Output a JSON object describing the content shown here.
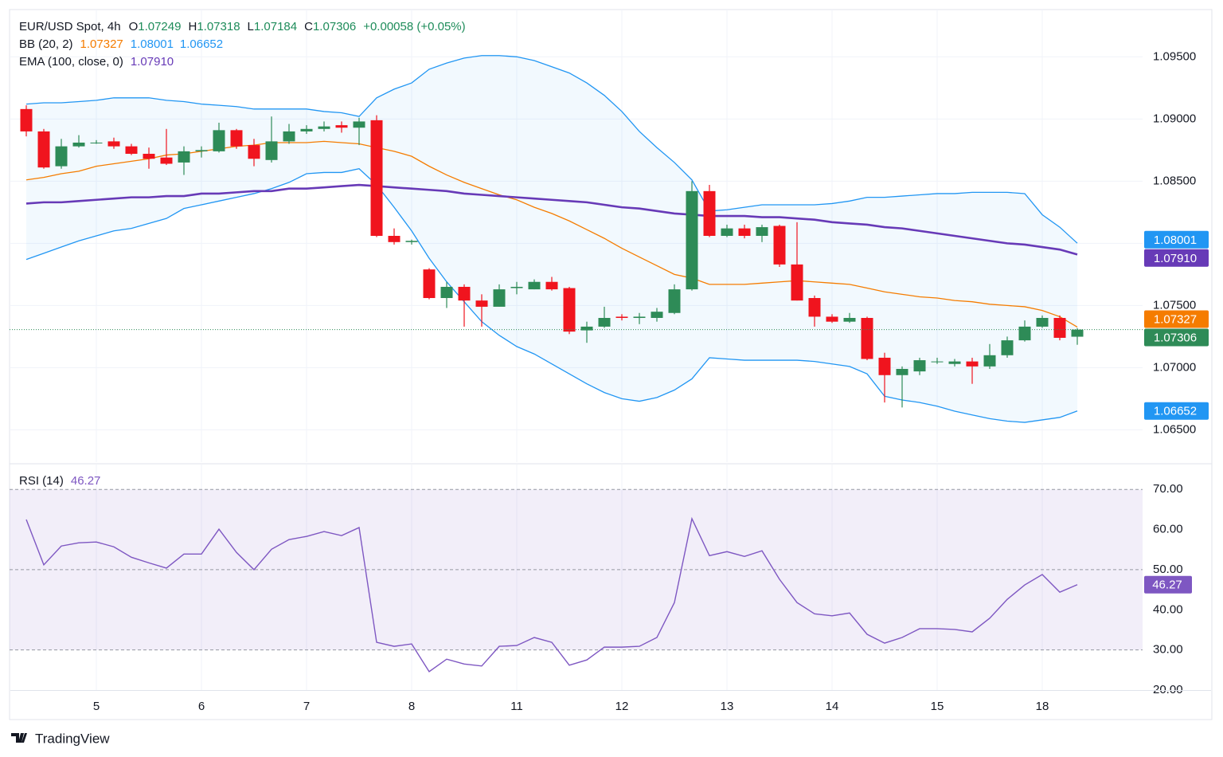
{
  "brand": "TradingView",
  "chart_data": {
    "type": "candlestick",
    "title": "EUR/USD Spot, 4h",
    "ohlc_labels": [
      "O",
      "H",
      "L",
      "C"
    ],
    "change": "+0.00058 (+0.05%)",
    "categories": [
      null,
      null,
      null,
      null,
      "5",
      null,
      null,
      null,
      null,
      null,
      "6",
      null,
      null,
      null,
      null,
      null,
      "7",
      null,
      null,
      null,
      null,
      null,
      "8",
      null,
      null,
      null,
      null,
      null,
      "11",
      null,
      null,
      null,
      null,
      null,
      "12",
      null,
      null,
      null,
      null,
      null,
      "13",
      null,
      null,
      null,
      null,
      null,
      "14",
      null,
      null,
      null,
      null,
      null,
      "15",
      null,
      null,
      null,
      null,
      null,
      "18",
      null,
      null
    ],
    "open": [
      1.0908,
      1.089,
      1.0862,
      1.0878,
      1.0881,
      1.0882,
      1.0878,
      1.0872,
      1.0869,
      1.0865,
      1.0874,
      1.0874,
      1.0891,
      1.0879,
      1.0867,
      1.0882,
      1.089,
      1.0892,
      1.0895,
      1.0893,
      1.0899,
      1.0806,
      1.0801,
      1.0779,
      1.0756,
      1.0765,
      1.0754,
      1.0749,
      1.0764,
      1.0763,
      1.0769,
      1.0764,
      1.073,
      1.0733,
      1.0741,
      1.074,
      1.074,
      1.0744,
      1.0763,
      1.0842,
      1.0806,
      1.0812,
      1.0806,
      1.0814,
      1.0783,
      1.0756,
      1.0741,
      1.0737,
      1.074,
      1.0708,
      1.0694,
      1.0697,
      1.0705,
      1.0703,
      1.0705,
      1.0701,
      1.071,
      1.0722,
      1.0733,
      1.074,
      1.07249
    ],
    "high": [
      1.0911,
      1.0892,
      1.0884,
      1.0887,
      1.0883,
      1.0885,
      1.088,
      1.0877,
      1.0892,
      1.0878,
      1.0878,
      1.0897,
      1.0892,
      1.0884,
      1.0902,
      1.0896,
      1.0895,
      1.0898,
      1.0898,
      1.0901,
      1.0903,
      1.0812,
      1.0803,
      1.078,
      1.0769,
      1.0767,
      1.0759,
      1.0767,
      1.0769,
      1.0771,
      1.0773,
      1.0765,
      1.0737,
      1.0749,
      1.0743,
      1.0744,
      1.0748,
      1.0767,
      1.085,
      1.0847,
      1.0815,
      1.0815,
      1.0815,
      1.0815,
      1.0817,
      1.0758,
      1.0743,
      1.0744,
      1.0741,
      1.0712,
      1.0701,
      1.0708,
      1.0708,
      1.0707,
      1.0708,
      1.0719,
      1.0725,
      1.0738,
      1.0742,
      1.0742,
      1.07318
    ],
    "low": [
      1.0886,
      1.086,
      1.086,
      1.0877,
      1.088,
      1.0876,
      1.0871,
      1.086,
      1.0863,
      1.0855,
      1.0869,
      1.0873,
      1.0876,
      1.0862,
      1.0865,
      1.088,
      1.0888,
      1.089,
      1.0889,
      1.0879,
      1.0805,
      1.0799,
      1.0799,
      1.0755,
      1.0748,
      1.0733,
      1.0733,
      1.0749,
      1.0759,
      1.0763,
      1.0762,
      1.0727,
      1.072,
      1.0732,
      1.0738,
      1.0735,
      1.0737,
      1.0743,
      1.0762,
      1.0805,
      1.0805,
      1.0804,
      1.0801,
      1.0781,
      1.0754,
      1.0733,
      1.0736,
      1.0736,
      1.0706,
      1.0672,
      1.0668,
      1.0694,
      1.0703,
      1.0701,
      1.0687,
      1.0699,
      1.0708,
      1.0721,
      1.0732,
      1.0722,
      1.07184
    ],
    "close": [
      1.089,
      1.0861,
      1.0878,
      1.0881,
      1.0881,
      1.0878,
      1.0872,
      1.0868,
      1.0864,
      1.0874,
      1.0875,
      1.0891,
      1.0878,
      1.0868,
      1.0882,
      1.089,
      1.0892,
      1.0894,
      1.0893,
      1.0898,
      1.0806,
      1.0801,
      1.0802,
      1.0756,
      1.0765,
      1.0754,
      1.0749,
      1.0763,
      1.0765,
      1.0769,
      1.0763,
      1.0729,
      1.0733,
      1.074,
      1.074,
      1.0741,
      1.0745,
      1.0763,
      1.0842,
      1.0806,
      1.0812,
      1.0806,
      1.0813,
      1.0783,
      1.0754,
      1.0741,
      1.0737,
      1.074,
      1.0707,
      1.0694,
      1.0699,
      1.0706,
      1.0705,
      1.0705,
      1.0701,
      1.071,
      1.0722,
      1.0733,
      1.074,
      1.0724,
      1.07306
    ],
    "up_color": "#2e8b57",
    "down_color": "#f0141e",
    "ylim": [
      1.0624,
      1.0988
    ],
    "yticks": [
      {
        "value": 1.065,
        "label": "1.06500"
      },
      {
        "value": 1.07,
        "label": "1.07000"
      },
      {
        "value": 1.075,
        "label": "1.07500"
      },
      {
        "value": 1.08,
        "label": "1.08000"
      },
      {
        "value": 1.085,
        "label": "1.08500"
      },
      {
        "value": 1.09,
        "label": "1.09000"
      },
      {
        "value": 1.095,
        "label": "1.09500"
      }
    ],
    "grid": true,
    "bb": {
      "name": "BB (20, 2)",
      "fill": "rgba(33,150,243,0.06)",
      "lines": [
        {
          "color": "#f57c00",
          "last_label": "1.07327",
          "values": [
            1.0851,
            1.0853,
            1.0856,
            1.0858,
            1.0862,
            1.0864,
            1.0866,
            1.0868,
            1.0871,
            1.0872,
            1.0874,
            1.0876,
            1.0878,
            1.0879,
            1.0881,
            1.0881,
            1.0881,
            1.0882,
            1.0881,
            1.088,
            1.0877,
            1.0874,
            1.087,
            1.0862,
            1.0855,
            1.0849,
            1.0844,
            1.0839,
            1.0835,
            1.0829,
            1.0824,
            1.0818,
            1.0811,
            1.0804,
            1.0796,
            1.0789,
            1.0782,
            1.0775,
            1.0772,
            1.0767,
            1.0767,
            1.0767,
            1.0768,
            1.0769,
            1.077,
            1.0769,
            1.0768,
            1.0767,
            1.0764,
            1.0761,
            1.0759,
            1.0757,
            1.0756,
            1.0754,
            1.0753,
            1.0751,
            1.075,
            1.0749,
            1.0746,
            1.0741,
            1.07327
          ]
        },
        {
          "color": "#2196f3",
          "last_label": "1.08001",
          "values": [
            1.0912,
            1.0913,
            1.0913,
            1.0914,
            1.0915,
            1.0917,
            1.0917,
            1.0917,
            1.0915,
            1.0914,
            1.0912,
            1.0911,
            1.091,
            1.0908,
            1.0908,
            1.0908,
            1.0908,
            1.0906,
            1.0905,
            1.0902,
            1.0917,
            1.0924,
            1.0929,
            1.094,
            1.0945,
            1.0949,
            1.0951,
            1.0951,
            1.095,
            1.0947,
            1.0942,
            1.0937,
            1.0929,
            1.0919,
            1.0906,
            1.089,
            1.0877,
            1.0865,
            1.0851,
            1.0826,
            1.0827,
            1.0829,
            1.0831,
            1.0831,
            1.0831,
            1.0831,
            1.0832,
            1.0834,
            1.0837,
            1.0837,
            1.0838,
            1.0839,
            1.084,
            1.084,
            1.0841,
            1.0841,
            1.0841,
            1.084,
            1.0823,
            1.0813,
            1.08001
          ]
        },
        {
          "color": "#2196f3",
          "last_label": "1.06652",
          "values": [
            1.0787,
            1.0792,
            1.0797,
            1.0802,
            1.0806,
            1.081,
            1.0812,
            1.0816,
            1.082,
            1.0828,
            1.0831,
            1.0834,
            1.0837,
            1.084,
            1.0844,
            1.0849,
            1.0856,
            1.0857,
            1.0857,
            1.086,
            1.0847,
            1.0829,
            1.081,
            1.0788,
            1.0769,
            1.0753,
            1.0737,
            1.0726,
            1.0717,
            1.0711,
            1.0703,
            1.0695,
            1.0687,
            1.068,
            1.0675,
            1.0673,
            1.0676,
            1.0682,
            1.0691,
            1.0708,
            1.0707,
            1.0706,
            1.0706,
            1.0706,
            1.0706,
            1.0705,
            1.0703,
            1.0701,
            1.0695,
            1.0677,
            1.0674,
            1.0672,
            1.0669,
            1.0665,
            1.0662,
            1.0659,
            1.0657,
            1.0656,
            1.0658,
            1.066,
            1.06652
          ]
        }
      ]
    },
    "ema": {
      "name": "EMA (100, close, 0)",
      "color": "#673ab7",
      "last_label": "1.07910",
      "values": [
        1.0832,
        1.0833,
        1.0833,
        1.0834,
        1.0835,
        1.0836,
        1.0837,
        1.0837,
        1.0838,
        1.0838,
        1.084,
        1.084,
        1.0841,
        1.0842,
        1.0842,
        1.0844,
        1.0844,
        1.0845,
        1.0846,
        1.0847,
        1.0846,
        1.0845,
        1.0844,
        1.0843,
        1.0842,
        1.084,
        1.0839,
        1.0838,
        1.0837,
        1.0836,
        1.0835,
        1.0834,
        1.0833,
        1.0831,
        1.0829,
        1.0828,
        1.0826,
        1.0824,
        1.0823,
        1.0822,
        1.0822,
        1.0822,
        1.0821,
        1.0821,
        1.082,
        1.0819,
        1.0817,
        1.0816,
        1.0815,
        1.0813,
        1.0812,
        1.081,
        1.0808,
        1.0806,
        1.0804,
        1.0802,
        1.08,
        1.0799,
        1.0797,
        1.0795,
        1.0791
      ]
    },
    "rsi": {
      "name": "RSI (14)",
      "color": "#7e57c2",
      "fill": "rgba(126,87,194,0.1)",
      "ylim": [
        20,
        76.2
      ],
      "yticks": [
        {
          "value": 20,
          "label": "20.00"
        },
        {
          "value": 30,
          "label": "30.00"
        },
        {
          "value": 40,
          "label": "40.00"
        },
        {
          "value": 50,
          "label": "50.00"
        },
        {
          "value": 60,
          "label": "60.00"
        },
        {
          "value": 70,
          "label": "70.00"
        }
      ],
      "band": [
        30,
        70
      ],
      "midline": 50,
      "values": [
        62.5,
        51.2,
        55.9,
        56.7,
        56.9,
        55.7,
        53.1,
        51.7,
        50.4,
        53.9,
        53.9,
        60.1,
        54.3,
        50.0,
        55.1,
        57.5,
        58.3,
        59.5,
        58.5,
        60.5,
        31.9,
        30.9,
        31.5,
        24.6,
        27.7,
        26.5,
        26.0,
        30.9,
        31.1,
        33.1,
        31.9,
        26.2,
        27.5,
        30.7,
        30.7,
        30.9,
        33.1,
        41.8,
        62.7,
        53.5,
        54.5,
        53.3,
        54.7,
        47.6,
        41.8,
        39.0,
        38.5,
        39.2,
        33.9,
        31.7,
        33.1,
        35.3,
        35.3,
        35.1,
        34.5,
        37.9,
        42.6,
        46.2,
        48.8,
        44.4,
        46.27
      ]
    }
  }
}
